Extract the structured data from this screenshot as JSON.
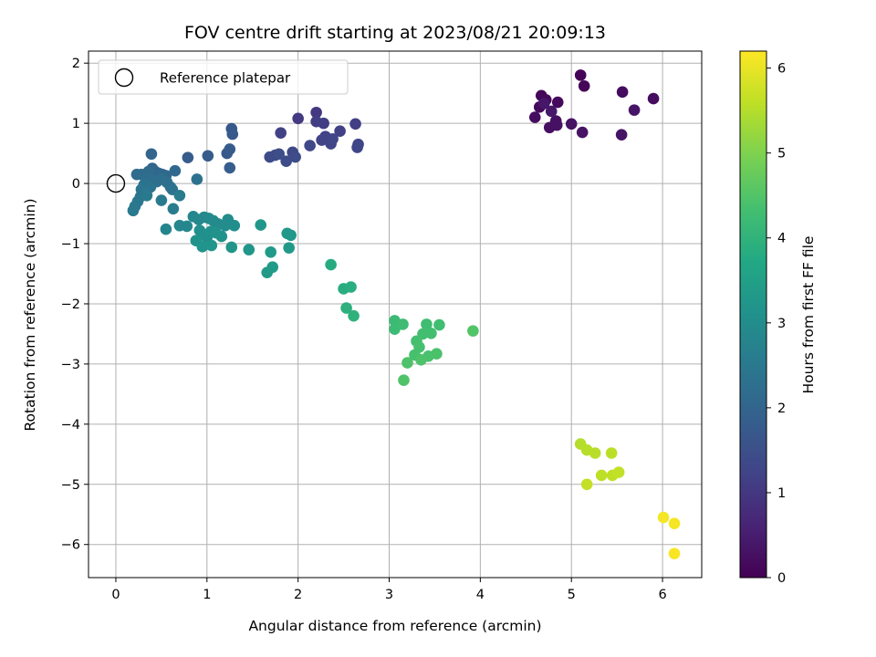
{
  "chart_data": {
    "type": "scatter",
    "title": "FOV centre drift starting at 2023/08/21 20:09:13",
    "xlabel": "Angular distance from reference (arcmin)",
    "ylabel": "Rotation from reference (arcmin)",
    "xlim": [
      -0.3,
      6.43
    ],
    "ylim": [
      -6.55,
      2.2
    ],
    "xticks": [
      0,
      1,
      2,
      3,
      4,
      5,
      6
    ],
    "yticks": [
      -6,
      -5,
      -4,
      -3,
      -2,
      -1,
      0,
      1,
      2
    ],
    "grid": true,
    "legend": {
      "placement": "top-left",
      "entries": [
        "Reference platepar"
      ]
    },
    "reference_point": {
      "x": 0,
      "y": 0
    },
    "colorbar": {
      "label": "Hours from first FF file",
      "colormap": "viridis",
      "range": [
        0,
        6.2
      ],
      "ticks": [
        0,
        1,
        2,
        3,
        4,
        5,
        6
      ]
    },
    "series": [
      {
        "points": [
          [
            5.1,
            1.8,
            0.05
          ],
          [
            5.14,
            1.62,
            0.08
          ],
          [
            4.67,
            1.46,
            0.1
          ],
          [
            4.72,
            1.39,
            0.12
          ],
          [
            4.65,
            1.27,
            0.14
          ],
          [
            4.85,
            1.35,
            0.16
          ],
          [
            5.56,
            1.52,
            0.18
          ],
          [
            5.9,
            1.41,
            0.2
          ],
          [
            4.6,
            1.1,
            0.22
          ],
          [
            4.83,
            1.04,
            0.24
          ],
          [
            4.76,
            0.93,
            0.26
          ],
          [
            4.84,
            0.97,
            0.28
          ],
          [
            5.0,
            0.99,
            0.3
          ],
          [
            5.12,
            0.85,
            0.32
          ],
          [
            5.55,
            0.81,
            0.34
          ],
          [
            5.69,
            1.22,
            0.36
          ],
          [
            4.7,
            1.33,
            0.38
          ],
          [
            4.78,
            1.2,
            0.4
          ],
          [
            2.2,
            1.18,
            1.0
          ],
          [
            2.0,
            1.08,
            1.05
          ],
          [
            2.2,
            1.03,
            1.1
          ],
          [
            2.28,
            1.0,
            1.12
          ],
          [
            2.63,
            0.99,
            1.15
          ],
          [
            2.46,
            0.87,
            1.18
          ],
          [
            1.81,
            0.84,
            1.2
          ],
          [
            2.3,
            0.78,
            1.22
          ],
          [
            2.26,
            0.72,
            1.24
          ],
          [
            2.36,
            0.66,
            1.26
          ],
          [
            2.38,
            0.74,
            1.28
          ],
          [
            2.66,
            0.65,
            1.3
          ],
          [
            2.65,
            0.6,
            1.32
          ],
          [
            2.13,
            0.63,
            1.34
          ],
          [
            1.94,
            0.52,
            1.36
          ],
          [
            1.75,
            0.47,
            1.38
          ],
          [
            1.69,
            0.44,
            1.4
          ],
          [
            1.97,
            0.44,
            1.42
          ],
          [
            1.87,
            0.37,
            1.44
          ],
          [
            1.79,
            0.49,
            1.46
          ],
          [
            1.27,
            0.91,
            1.7
          ],
          [
            1.28,
            0.82,
            1.72
          ],
          [
            1.22,
            0.5,
            1.74
          ],
          [
            1.25,
            0.57,
            1.76
          ],
          [
            1.01,
            0.46,
            1.78
          ],
          [
            0.79,
            0.43,
            1.8
          ],
          [
            1.25,
            0.26,
            1.82
          ],
          [
            0.39,
            0.49,
            2.0
          ],
          [
            0.4,
            0.25,
            2.02
          ],
          [
            0.43,
            0.2,
            2.04
          ],
          [
            0.47,
            0.17,
            2.06
          ],
          [
            0.51,
            0.15,
            2.08
          ],
          [
            0.55,
            0.13,
            2.1
          ],
          [
            0.65,
            0.21,
            2.12
          ],
          [
            0.36,
            0.2,
            2.14
          ],
          [
            0.28,
            0.15,
            2.16
          ],
          [
            0.23,
            0.15,
            2.18
          ],
          [
            0.34,
            0.08,
            2.2
          ],
          [
            0.41,
            0.05,
            2.22
          ],
          [
            0.45,
            0.03,
            2.24
          ],
          [
            0.5,
            0.07,
            2.26
          ],
          [
            0.56,
            0.02,
            2.28
          ],
          [
            0.6,
            -0.06,
            2.3
          ],
          [
            0.62,
            -0.1,
            2.32
          ],
          [
            0.89,
            0.07,
            2.34
          ],
          [
            0.31,
            -0.02,
            2.36
          ],
          [
            0.38,
            -0.06,
            2.38
          ],
          [
            0.28,
            -0.1,
            2.4
          ],
          [
            0.32,
            -0.15,
            2.42
          ],
          [
            0.27,
            -0.22,
            2.44
          ],
          [
            0.24,
            -0.3,
            2.46
          ],
          [
            0.21,
            -0.38,
            2.48
          ],
          [
            0.19,
            -0.45,
            2.5
          ],
          [
            0.34,
            -0.2,
            2.52
          ],
          [
            0.5,
            -0.28,
            2.54
          ],
          [
            0.7,
            -0.2,
            2.56
          ],
          [
            0.63,
            -0.42,
            2.58
          ],
          [
            0.55,
            -0.76,
            2.8
          ],
          [
            0.7,
            -0.7,
            2.82
          ],
          [
            0.78,
            -0.71,
            2.84
          ],
          [
            0.85,
            -0.55,
            2.86
          ],
          [
            0.91,
            -0.6,
            2.88
          ],
          [
            0.97,
            -0.56,
            2.9
          ],
          [
            1.02,
            -0.58,
            2.92
          ],
          [
            1.07,
            -0.62,
            2.94
          ],
          [
            1.12,
            -0.67,
            2.96
          ],
          [
            1.2,
            -0.7,
            2.98
          ],
          [
            1.23,
            -0.6,
            3.0
          ],
          [
            1.3,
            -0.7,
            3.02
          ],
          [
            0.92,
            -0.78,
            3.04
          ],
          [
            0.96,
            -0.85,
            3.06
          ],
          [
            1.0,
            -0.9,
            3.08
          ],
          [
            1.04,
            -0.8,
            3.1
          ],
          [
            1.1,
            -0.82,
            3.12
          ],
          [
            1.16,
            -0.88,
            3.14
          ],
          [
            0.88,
            -0.95,
            3.16
          ],
          [
            0.95,
            -1.05,
            3.18
          ],
          [
            1.05,
            -1.03,
            3.2
          ],
          [
            1.27,
            -1.06,
            3.22
          ],
          [
            1.46,
            -1.1,
            3.24
          ],
          [
            1.59,
            -0.69,
            3.26
          ],
          [
            1.88,
            -0.83,
            3.28
          ],
          [
            1.92,
            -0.86,
            3.3
          ],
          [
            1.9,
            -1.07,
            3.32
          ],
          [
            1.7,
            -1.14,
            3.34
          ],
          [
            1.72,
            -1.39,
            3.36
          ],
          [
            1.66,
            -1.48,
            3.38
          ],
          [
            2.36,
            -1.35,
            3.8
          ],
          [
            2.5,
            -1.75,
            3.84
          ],
          [
            2.58,
            -1.72,
            3.88
          ],
          [
            2.53,
            -2.07,
            3.92
          ],
          [
            2.61,
            -2.2,
            3.96
          ],
          [
            3.06,
            -2.28,
            4.2
          ],
          [
            3.06,
            -2.42,
            4.22
          ],
          [
            3.15,
            -2.34,
            4.24
          ],
          [
            3.41,
            -2.34,
            4.26
          ],
          [
            3.55,
            -2.35,
            4.28
          ],
          [
            3.46,
            -2.49,
            4.3
          ],
          [
            3.37,
            -2.5,
            4.32
          ],
          [
            3.3,
            -2.62,
            4.34
          ],
          [
            3.33,
            -2.72,
            4.36
          ],
          [
            3.28,
            -2.85,
            4.38
          ],
          [
            3.43,
            -2.87,
            4.4
          ],
          [
            3.52,
            -2.83,
            4.42
          ],
          [
            3.35,
            -2.93,
            4.44
          ],
          [
            3.2,
            -2.98,
            4.46
          ],
          [
            3.16,
            -3.27,
            4.48
          ],
          [
            3.92,
            -2.45,
            4.5
          ],
          [
            5.1,
            -4.33,
            5.5
          ],
          [
            5.17,
            -4.43,
            5.52
          ],
          [
            5.26,
            -4.48,
            5.54
          ],
          [
            5.44,
            -4.48,
            5.56
          ],
          [
            5.33,
            -4.85,
            5.58
          ],
          [
            5.45,
            -4.85,
            5.6
          ],
          [
            5.52,
            -4.8,
            5.62
          ],
          [
            5.17,
            -5.0,
            5.64
          ],
          [
            6.01,
            -5.55,
            6.1
          ],
          [
            6.13,
            -5.65,
            6.12
          ],
          [
            6.13,
            -6.15,
            6.15
          ]
        ]
      }
    ]
  }
}
